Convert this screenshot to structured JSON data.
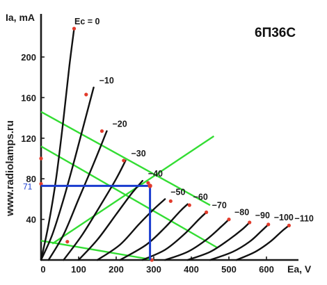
{
  "chart_data": {
    "type": "line",
    "title": "6П36С",
    "xlabel": "Ea, V",
    "ylabel": "Ia, mA",
    "watermark": "www.radiolamps.ru",
    "xlim": [
      0,
      680
    ],
    "ylim": [
      0,
      240
    ],
    "x_ticks": [
      "0",
      "100",
      "200",
      "300",
      "400",
      "500",
      "600"
    ],
    "y_ticks": [
      "40",
      "80",
      "120",
      "160",
      "200"
    ],
    "grid": false,
    "colors": {
      "curves": "#111111",
      "markers": "#e23b2b",
      "load_lines": "#33dd33",
      "operating_point": "#1a3ccf"
    },
    "series": [
      {
        "name": "Ec = 0",
        "points": [
          [
            0,
            0
          ],
          [
            20,
            35
          ],
          [
            40,
            80
          ],
          [
            60,
            140
          ],
          [
            75,
            190
          ],
          [
            88,
            228
          ]
        ]
      },
      {
        "name": "−10",
        "points": [
          [
            0,
            0
          ],
          [
            30,
            25
          ],
          [
            60,
            60
          ],
          [
            90,
            100
          ],
          [
            115,
            135
          ],
          [
            140,
            170
          ]
        ]
      },
      {
        "name": "−20",
        "points": [
          [
            20,
            0
          ],
          [
            60,
            25
          ],
          [
            100,
            60
          ],
          [
            140,
            95
          ],
          [
            175,
            127
          ]
        ]
      },
      {
        "name": "−30",
        "points": [
          [
            60,
            0
          ],
          [
            110,
            25
          ],
          [
            160,
            55
          ],
          [
            200,
            80
          ],
          [
            225,
            98
          ]
        ]
      },
      {
        "name": "−40",
        "points": [
          [
            100,
            0
          ],
          [
            150,
            20
          ],
          [
            200,
            45
          ],
          [
            240,
            65
          ],
          [
            270,
            78
          ]
        ]
      },
      {
        "name": "−50",
        "points": [
          [
            150,
            0
          ],
          [
            210,
            15
          ],
          [
            260,
            35
          ],
          [
            300,
            50
          ],
          [
            330,
            60
          ]
        ]
      },
      {
        "name": "−60",
        "points": [
          [
            210,
            0
          ],
          [
            280,
            15
          ],
          [
            330,
            32
          ],
          [
            370,
            48
          ],
          [
            390,
            55
          ]
        ]
      },
      {
        "name": "−70",
        "points": [
          [
            270,
            0
          ],
          [
            330,
            10
          ],
          [
            380,
            25
          ],
          [
            420,
            40
          ],
          [
            440,
            47
          ]
        ]
      },
      {
        "name": "−80",
        "points": [
          [
            330,
            0
          ],
          [
            390,
            8
          ],
          [
            440,
            20
          ],
          [
            480,
            33
          ],
          [
            500,
            40
          ]
        ]
      },
      {
        "name": "−90",
        "points": [
          [
            390,
            0
          ],
          [
            450,
            8
          ],
          [
            500,
            20
          ],
          [
            535,
            30
          ],
          [
            555,
            37
          ]
        ]
      },
      {
        "name": "−100",
        "points": [
          [
            450,
            0
          ],
          [
            510,
            8
          ],
          [
            555,
            18
          ],
          [
            585,
            28
          ],
          [
            605,
            35
          ]
        ]
      },
      {
        "name": "−110",
        "points": [
          [
            520,
            0
          ],
          [
            570,
            8
          ],
          [
            610,
            18
          ],
          [
            640,
            28
          ],
          [
            660,
            34
          ]
        ]
      }
    ],
    "markers": [
      [
        88,
        228
      ],
      [
        120,
        163
      ],
      [
        162,
        127
      ],
      [
        220,
        98
      ],
      [
        285,
        76
      ],
      [
        345,
        58
      ],
      [
        395,
        54
      ],
      [
        440,
        47
      ],
      [
        500,
        40
      ],
      [
        555,
        37
      ],
      [
        605,
        35
      ],
      [
        660,
        34
      ],
      [
        0,
        100
      ],
      [
        70,
        18
      ],
      [
        0,
        75
      ],
      [
        295,
        0
      ]
    ],
    "load_lines": [
      [
        [
          0,
          146
        ],
        [
          450,
          54
        ]
      ],
      [
        [
          0,
          112
        ],
        [
          470,
          12
        ]
      ],
      [
        [
          30,
          16
        ],
        [
          460,
          122
        ]
      ],
      [
        [
          0,
          19
        ],
        [
          300,
          0
        ]
      ]
    ],
    "operating_point": {
      "x": 290,
      "y": 73,
      "label": "71"
    }
  }
}
